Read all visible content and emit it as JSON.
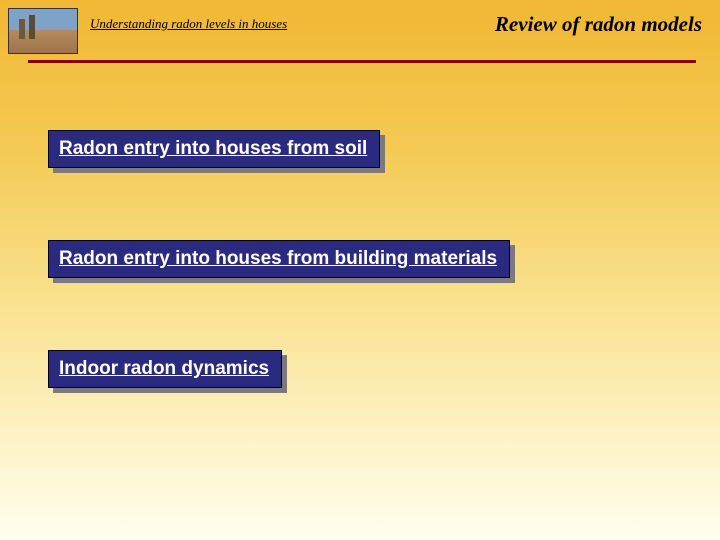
{
  "header": {
    "subtitle": "Understanding radon levels in houses",
    "title": "Review of radon models"
  },
  "boxes": [
    {
      "text": "Radon entry into houses from soil"
    },
    {
      "text": "Radon entry into houses from building materials"
    },
    {
      "text": "Indoor radon dynamics"
    }
  ],
  "style": {
    "slide_bg_top": "#f0b733",
    "slide_bg_bottom": "#fffef0",
    "divider_color": "#8b0000",
    "box_bg": "#2a2a7e",
    "box_text_color": "#ffffff",
    "box_shadow_color": "#7a7a7a",
    "title_fontsize": 21,
    "subtitle_fontsize": 13,
    "box_fontsize": 19
  }
}
